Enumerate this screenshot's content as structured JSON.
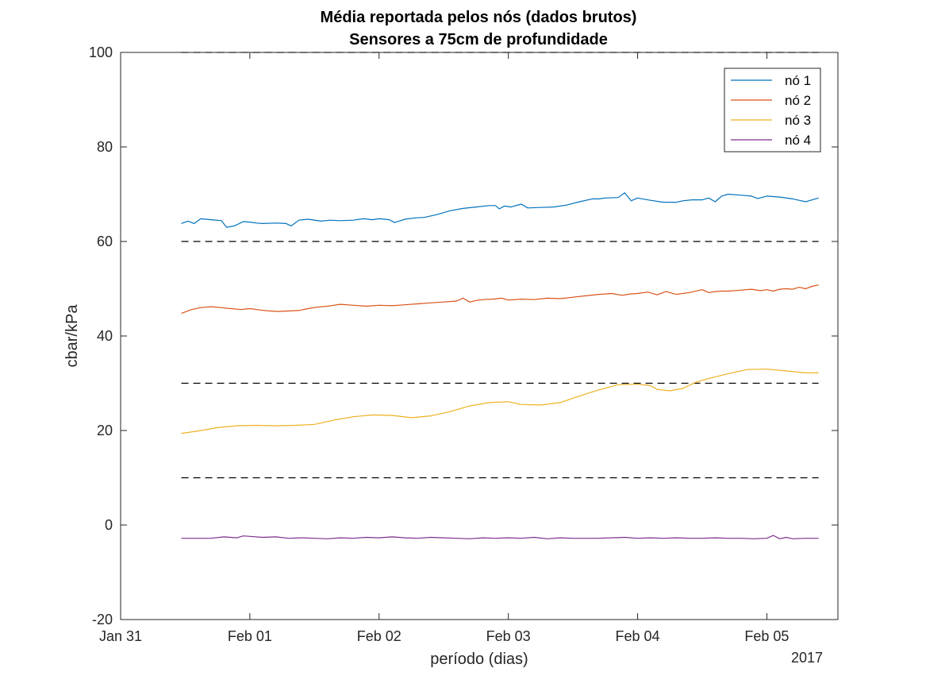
{
  "chart_data": {
    "type": "line",
    "title": [
      "Média reportada pelos nós (dados brutos)",
      "Sensores a 75cm de profundidade"
    ],
    "xlabel": "período (dias)",
    "ylabel": "cbar/kPa",
    "x_axis_year_label": "2017",
    "xlim_days": [
      0,
      5.55
    ],
    "x_ticks": [
      {
        "day": 0,
        "label": "Jan 31"
      },
      {
        "day": 1,
        "label": "Feb 01"
      },
      {
        "day": 2,
        "label": "Feb 02"
      },
      {
        "day": 3,
        "label": "Feb 03"
      },
      {
        "day": 4,
        "label": "Feb 04"
      },
      {
        "day": 5,
        "label": "Feb 05"
      }
    ],
    "ylim": [
      -20,
      100
    ],
    "y_ticks": [
      {
        "value": -20,
        "label": "-20"
      },
      {
        "value": 0,
        "label": "0"
      },
      {
        "value": 20,
        "label": "20"
      },
      {
        "value": 40,
        "label": "40"
      },
      {
        "value": 60,
        "label": "60"
      },
      {
        "value": 80,
        "label": "80"
      },
      {
        "value": 100,
        "label": "100"
      }
    ],
    "grid": false,
    "legend_position": "top-right",
    "reference_lines": [
      {
        "value": 100,
        "x_range": [
          0.47,
          5.4
        ],
        "color": "#000000",
        "style": "dashed"
      },
      {
        "value": 60,
        "x_range": [
          0.47,
          5.4
        ],
        "color": "#000000",
        "style": "dashed"
      },
      {
        "value": 30,
        "x_range": [
          0.47,
          5.4
        ],
        "color": "#000000",
        "style": "dashed"
      },
      {
        "value": 10,
        "x_range": [
          0.47,
          5.4
        ],
        "color": "#000000",
        "style": "dashed"
      }
    ],
    "series": [
      {
        "name": "nó 1",
        "color": "#0072BD",
        "x": [
          0.47,
          0.52,
          0.57,
          0.62,
          0.7,
          0.78,
          0.82,
          0.88,
          0.95,
          1.0,
          1.05,
          1.1,
          1.2,
          1.28,
          1.32,
          1.38,
          1.45,
          1.55,
          1.62,
          1.7,
          1.8,
          1.88,
          1.95,
          2.0,
          2.08,
          2.12,
          2.2,
          2.28,
          2.35,
          2.45,
          2.55,
          2.65,
          2.75,
          2.85,
          2.9,
          2.93,
          2.97,
          3.02,
          3.1,
          3.15,
          3.25,
          3.35,
          3.45,
          3.55,
          3.65,
          3.7,
          3.75,
          3.85,
          3.9,
          3.95,
          4.0,
          4.1,
          4.2,
          4.3,
          4.35,
          4.42,
          4.5,
          4.55,
          4.6,
          4.65,
          4.7,
          4.8,
          4.88,
          4.93,
          5.0,
          5.1,
          5.2,
          5.25,
          5.3,
          5.4
        ],
        "values": [
          63.8,
          64.3,
          63.8,
          64.8,
          64.6,
          64.4,
          63.0,
          63.3,
          64.2,
          64.1,
          63.9,
          63.8,
          63.9,
          63.8,
          63.3,
          64.5,
          64.7,
          64.3,
          64.5,
          64.4,
          64.5,
          64.8,
          64.6,
          64.8,
          64.6,
          64.0,
          64.7,
          65.0,
          65.1,
          65.7,
          66.5,
          67.0,
          67.3,
          67.6,
          67.6,
          66.9,
          67.5,
          67.3,
          67.9,
          67.1,
          67.2,
          67.3,
          67.7,
          68.4,
          69.0,
          69.0,
          69.2,
          69.3,
          70.3,
          68.6,
          69.2,
          68.7,
          68.3,
          68.3,
          68.6,
          68.8,
          68.8,
          69.2,
          68.4,
          69.6,
          70.0,
          69.8,
          69.6,
          69.1,
          69.6,
          69.4,
          69.0,
          68.7,
          68.4,
          69.2
        ]
      },
      {
        "name": "nó 2",
        "color": "#D95319",
        "x": [
          0.47,
          0.55,
          0.62,
          0.7,
          0.78,
          0.85,
          0.93,
          1.0,
          1.08,
          1.15,
          1.22,
          1.3,
          1.38,
          1.45,
          1.52,
          1.6,
          1.65,
          1.7,
          1.8,
          1.9,
          2.0,
          2.1,
          2.2,
          2.3,
          2.4,
          2.5,
          2.6,
          2.65,
          2.7,
          2.75,
          2.8,
          2.88,
          2.95,
          3.0,
          3.1,
          3.2,
          3.3,
          3.4,
          3.5,
          3.6,
          3.7,
          3.8,
          3.88,
          3.95,
          4.0,
          4.08,
          4.15,
          4.22,
          4.3,
          4.4,
          4.5,
          4.55,
          4.6,
          4.65,
          4.7,
          4.8,
          4.88,
          4.95,
          5.0,
          5.05,
          5.1,
          5.15,
          5.2,
          5.25,
          5.3,
          5.35,
          5.4
        ],
        "values": [
          44.8,
          45.6,
          46.0,
          46.2,
          46.0,
          45.8,
          45.6,
          45.8,
          45.5,
          45.3,
          45.2,
          45.3,
          45.4,
          45.8,
          46.1,
          46.3,
          46.5,
          46.7,
          46.5,
          46.3,
          46.5,
          46.4,
          46.6,
          46.8,
          47.0,
          47.2,
          47.4,
          48.0,
          47.2,
          47.5,
          47.7,
          47.8,
          48.0,
          47.6,
          47.8,
          47.7,
          48.0,
          47.9,
          48.2,
          48.5,
          48.8,
          49.0,
          48.6,
          48.9,
          49.0,
          49.3,
          48.7,
          49.4,
          48.8,
          49.2,
          49.8,
          49.2,
          49.4,
          49.5,
          49.5,
          49.7,
          49.9,
          49.6,
          49.8,
          49.5,
          49.9,
          50.0,
          49.9,
          50.3,
          50.0,
          50.5,
          50.8
        ]
      },
      {
        "name": "nó 3",
        "color": "#EDB120",
        "x": [
          0.47,
          0.6,
          0.75,
          0.9,
          1.05,
          1.2,
          1.35,
          1.5,
          1.65,
          1.8,
          1.95,
          2.1,
          2.25,
          2.4,
          2.55,
          2.7,
          2.85,
          3.0,
          3.1,
          3.25,
          3.4,
          3.55,
          3.7,
          3.85,
          4.0,
          4.1,
          4.15,
          4.25,
          4.35,
          4.45,
          4.55,
          4.7,
          4.85,
          5.0,
          5.15,
          5.3,
          5.4
        ],
        "values": [
          19.4,
          19.9,
          20.6,
          21.0,
          21.1,
          21.0,
          21.1,
          21.3,
          22.2,
          22.9,
          23.3,
          23.2,
          22.7,
          23.1,
          24.0,
          25.2,
          25.9,
          26.1,
          25.5,
          25.4,
          25.9,
          27.3,
          28.6,
          29.7,
          29.8,
          29.5,
          28.7,
          28.4,
          28.9,
          30.2,
          31.0,
          32.0,
          32.9,
          33.0,
          32.6,
          32.2,
          32.2
        ]
      },
      {
        "name": "nó 4",
        "color": "#7E2F8E",
        "x": [
          0.47,
          0.6,
          0.7,
          0.8,
          0.9,
          0.95,
          1.0,
          1.1,
          1.2,
          1.3,
          1.4,
          1.5,
          1.6,
          1.7,
          1.8,
          1.9,
          2.0,
          2.1,
          2.2,
          2.3,
          2.4,
          2.5,
          2.6,
          2.7,
          2.8,
          2.9,
          3.0,
          3.1,
          3.2,
          3.3,
          3.4,
          3.5,
          3.6,
          3.7,
          3.8,
          3.9,
          4.0,
          4.1,
          4.2,
          4.3,
          4.4,
          4.5,
          4.6,
          4.7,
          4.8,
          4.9,
          5.0,
          5.05,
          5.1,
          5.15,
          5.2,
          5.3,
          5.4
        ],
        "values": [
          -2.8,
          -2.8,
          -2.8,
          -2.5,
          -2.7,
          -2.3,
          -2.4,
          -2.6,
          -2.5,
          -2.8,
          -2.7,
          -2.8,
          -2.9,
          -2.7,
          -2.8,
          -2.6,
          -2.7,
          -2.5,
          -2.7,
          -2.8,
          -2.6,
          -2.7,
          -2.8,
          -2.9,
          -2.7,
          -2.8,
          -2.7,
          -2.8,
          -2.6,
          -2.9,
          -2.7,
          -2.8,
          -2.8,
          -2.8,
          -2.7,
          -2.6,
          -2.8,
          -2.7,
          -2.8,
          -2.7,
          -2.8,
          -2.8,
          -2.7,
          -2.8,
          -2.8,
          -2.9,
          -2.8,
          -2.2,
          -2.9,
          -2.6,
          -2.9,
          -2.8,
          -2.8
        ]
      }
    ]
  }
}
